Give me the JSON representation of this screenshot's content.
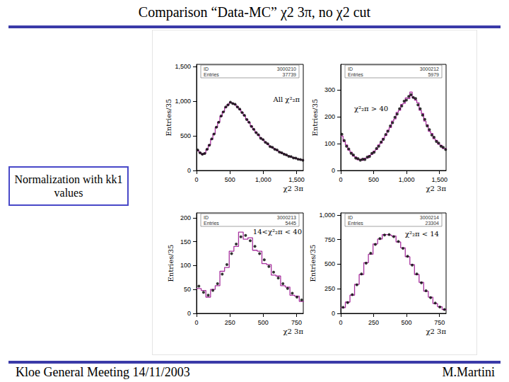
{
  "page": {
    "title": "Comparison “Data-MC” χ2 3π, no χ2 cut",
    "note": "Normalization with kk1 values",
    "footer": "Kloe General Meeting 14/11/2003",
    "author": "M.Martini"
  },
  "chart_data": [
    {
      "type": "histogram",
      "annotation": "All χ²₂π",
      "stats": [
        [
          "ID",
          "3000210"
        ],
        [
          "Entries",
          "37739"
        ]
      ],
      "x_label": "χ2 3π",
      "y_label": "Entries/35",
      "bins": [
        0,
        35,
        70,
        105,
        140,
        175,
        210,
        245,
        280,
        315,
        350,
        385,
        420,
        455,
        490,
        525,
        560,
        595,
        630,
        665,
        700,
        735,
        770,
        805,
        840,
        875,
        910,
        945,
        980,
        1015,
        1050,
        1085,
        1120,
        1155,
        1190,
        1225,
        1260,
        1295,
        1330,
        1365,
        1400,
        1435,
        1470,
        1505,
        1540,
        1575,
        1610
      ],
      "series": [
        {
          "type": "line",
          "line_style": "steps",
          "color": "#a8329f",
          "values": [
            290,
            260,
            230,
            250,
            300,
            370,
            450,
            530,
            620,
            700,
            780,
            850,
            910,
            950,
            980,
            970,
            950,
            920,
            880,
            840,
            790,
            740,
            690,
            640,
            590,
            550,
            510,
            470,
            440,
            410,
            380,
            350,
            330,
            310,
            290,
            270,
            250,
            240,
            220,
            210,
            195,
            185,
            175,
            165,
            155,
            150
          ]
        },
        {
          "type": "scatter",
          "marker": "circle",
          "color": "#000000",
          "values": [
            295,
            255,
            235,
            245,
            305,
            365,
            455,
            525,
            625,
            695,
            785,
            845,
            915,
            945,
            985,
            965,
            955,
            915,
            885,
            835,
            795,
            735,
            695,
            635,
            595,
            545,
            515,
            465,
            445,
            405,
            385,
            345,
            335,
            305,
            295,
            265,
            255,
            235,
            225,
            205,
            200,
            180,
            178,
            162,
            158,
            148
          ]
        }
      ],
      "xlim": [
        0,
        1600
      ],
      "xticks": [
        0,
        500,
        1000,
        1500
      ],
      "ylim": [
        0,
        1530
      ],
      "yticks": [
        0,
        500,
        1000,
        1500
      ],
      "grid": false
    },
    {
      "type": "histogram",
      "annotation": "χ²₂π > 40",
      "stats": [
        [
          "ID",
          "3000212"
        ],
        [
          "Entries",
          "5979"
        ]
      ],
      "x_label": "χ2 3π",
      "y_label": "Entries/35",
      "bins": [
        0,
        35,
        70,
        105,
        140,
        175,
        210,
        245,
        280,
        315,
        350,
        385,
        420,
        455,
        490,
        525,
        560,
        595,
        630,
        665,
        700,
        735,
        770,
        805,
        840,
        875,
        910,
        945,
        980,
        1015,
        1050,
        1085,
        1120,
        1155,
        1190,
        1225,
        1260,
        1295,
        1330,
        1365,
        1400,
        1435,
        1470,
        1505,
        1540,
        1575,
        1610
      ],
      "series": [
        {
          "type": "line",
          "line_style": "steps",
          "color": "#a8329f",
          "values": [
            128,
            108,
            95,
            76,
            68,
            54,
            50,
            40,
            42,
            38,
            46,
            46,
            56,
            60,
            72,
            78,
            95,
            102,
            120,
            130,
            150,
            160,
            184,
            192,
            216,
            224,
            246,
            250,
            270,
            268,
            292,
            270,
            262,
            252,
            224,
            212,
            184,
            170,
            146,
            138,
            118,
            112,
            98,
            94,
            82,
            82
          ]
        },
        {
          "type": "scatter",
          "marker": "circle",
          "color": "#000000",
          "values": [
            135,
            112,
            90,
            80,
            64,
            58,
            46,
            44,
            38,
            42,
            41,
            50,
            52,
            64,
            68,
            82,
            90,
            106,
            116,
            134,
            146,
            166,
            178,
            198,
            210,
            230,
            240,
            258,
            262,
            276,
            282,
            272,
            268,
            244,
            230,
            206,
            190,
            166,
            152,
            132,
            124,
            108,
            102,
            90,
            86,
            78
          ]
        }
      ],
      "xlim": [
        0,
        1600
      ],
      "xticks": [
        0,
        500,
        1000,
        1500
      ],
      "ylim": [
        0,
        395
      ],
      "yticks": [
        0,
        100,
        200,
        300
      ],
      "grid": false
    },
    {
      "type": "histogram",
      "annotation": "14<χ²₂π < 40",
      "stats": [
        [
          "ID",
          "3000213"
        ],
        [
          "Entries",
          "5445"
        ]
      ],
      "x_label": "χ2 3π",
      "y_label": "Entries/35",
      "bins": [
        0,
        35,
        70,
        105,
        140,
        175,
        210,
        245,
        280,
        315,
        350,
        385,
        420,
        455,
        490,
        525,
        560,
        595,
        630,
        665,
        700,
        735,
        770,
        805
      ],
      "series": [
        {
          "type": "line",
          "line_style": "steps",
          "color": "#a8329f",
          "values": [
            52,
            48,
            34,
            50,
            58,
            88,
            96,
            130,
            140,
            170,
            155,
            158,
            132,
            130,
            104,
            102,
            80,
            78,
            58,
            55,
            38,
            36,
            25
          ]
        },
        {
          "type": "scatter",
          "marker": "circle",
          "color": "#000000",
          "values": [
            57,
            44,
            38,
            48,
            62,
            82,
            102,
            125,
            145,
            160,
            163,
            152,
            140,
            125,
            112,
            98,
            86,
            74,
            62,
            52,
            42,
            34,
            28
          ]
        }
      ],
      "xlim": [
        0,
        800
      ],
      "xticks": [
        0,
        250,
        500,
        750
      ],
      "ylim": [
        0,
        210
      ],
      "yticks": [
        0,
        50,
        100,
        150,
        200
      ],
      "grid": false
    },
    {
      "type": "histogram",
      "annotation": "χ²₂π < 14",
      "stats": [
        [
          "ID",
          "3000214"
        ],
        [
          "Entries",
          "23304"
        ]
      ],
      "x_label": "χ2 3π",
      "y_label": "Entries/35",
      "bins": [
        0,
        35,
        70,
        105,
        140,
        175,
        210,
        245,
        280,
        315,
        350,
        385,
        420,
        455,
        490,
        525,
        560,
        595,
        630,
        665,
        700,
        735,
        770,
        805
      ],
      "series": [
        {
          "type": "line",
          "line_style": "steps",
          "color": "#a8329f",
          "values": [
            58,
            115,
            185,
            295,
            395,
            515,
            600,
            705,
            755,
            800,
            795,
            785,
            725,
            665,
            575,
            495,
            395,
            315,
            225,
            165,
            100,
            68,
            38
          ]
        },
        {
          "type": "scatter",
          "marker": "circle",
          "color": "#000000",
          "values": [
            62,
            110,
            190,
            290,
            400,
            510,
            610,
            700,
            760,
            795,
            800,
            780,
            730,
            660,
            580,
            490,
            400,
            310,
            230,
            160,
            105,
            65,
            40
          ]
        }
      ],
      "xlim": [
        0,
        800
      ],
      "xticks": [
        0,
        250,
        500,
        750
      ],
      "ylim": [
        0,
        1020
      ],
      "yticks": [
        0,
        250,
        500,
        750,
        1000
      ],
      "grid": false
    }
  ]
}
